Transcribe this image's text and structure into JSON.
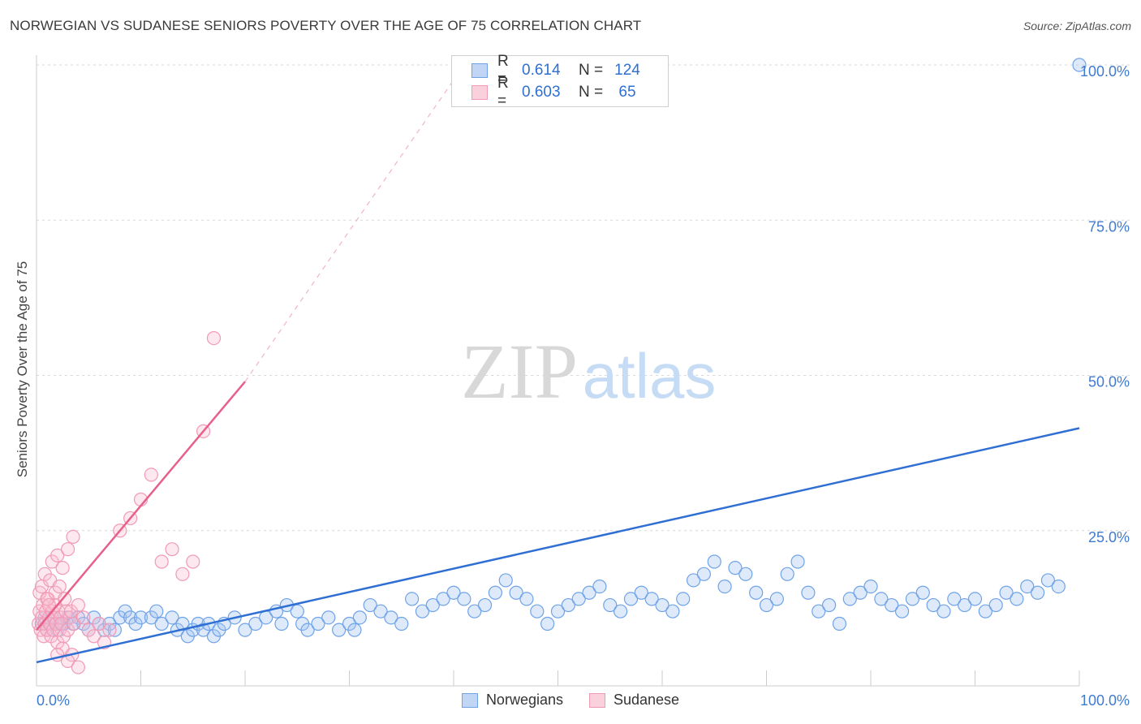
{
  "title": "NORWEGIAN VS SUDANESE SENIORS POVERTY OVER THE AGE OF 75 CORRELATION CHART",
  "source": "Source: ZipAtlas.com",
  "watermark": {
    "zip": "ZIP",
    "atlas": "atlas"
  },
  "legend_stats": [
    {
      "r_label": "R =",
      "r_value": "0.614",
      "n_label": "N =",
      "n_value": "124"
    },
    {
      "r_label": "R =",
      "r_value": "0.603",
      "n_label": "N =",
      "n_value": "65"
    }
  ],
  "colors": {
    "norwegians": "#6fa3e8",
    "norwegians_line": "#2f6fd3",
    "sudanese": "#f19ab5",
    "sudanese_line": "#e8608a",
    "tick_text": "#3f7bd0"
  },
  "chart_data": {
    "type": "scatter",
    "title": "NORWEGIAN VS SUDANESE SENIORS POVERTY OVER THE AGE OF 75 CORRELATION CHART",
    "xlabel": "",
    "ylabel": "Seniors Poverty Over the Age of 75",
    "xlim": [
      0,
      100
    ],
    "ylim": [
      0,
      100
    ],
    "x_tick_labels": [
      "0.0%",
      "100.0%"
    ],
    "y_tick_labels": [
      "25.0%",
      "50.0%",
      "75.0%",
      "100.0%"
    ],
    "y_ticks": [
      25,
      50,
      75,
      100
    ],
    "grid": true,
    "legend_position": "bottom-center",
    "series": [
      {
        "name": "Norwegians",
        "r": 0.614,
        "n": 124,
        "trend": {
          "x": [
            0,
            100
          ],
          "y": [
            3.8,
            41.5
          ],
          "dashed_extension": false
        },
        "points": [
          [
            0.5,
            10
          ],
          [
            0.8,
            11
          ],
          [
            1.0,
            9
          ],
          [
            1.2,
            10
          ],
          [
            1.5,
            11
          ],
          [
            1.8,
            10
          ],
          [
            2,
            9
          ],
          [
            2.3,
            10
          ],
          [
            2.6,
            10
          ],
          [
            3,
            11
          ],
          [
            3.5,
            10
          ],
          [
            4,
            11
          ],
          [
            4.5,
            10
          ],
          [
            5,
            9
          ],
          [
            5.5,
            11
          ],
          [
            6,
            10
          ],
          [
            6.5,
            9
          ],
          [
            7,
            10
          ],
          [
            7.5,
            9
          ],
          [
            8,
            11
          ],
          [
            8.5,
            12
          ],
          [
            9,
            11
          ],
          [
            9.5,
            10
          ],
          [
            10,
            11
          ],
          [
            11,
            11
          ],
          [
            11.5,
            12
          ],
          [
            12,
            10
          ],
          [
            13,
            11
          ],
          [
            13.5,
            9
          ],
          [
            14,
            10
          ],
          [
            14.5,
            8
          ],
          [
            15,
            9
          ],
          [
            15.5,
            10
          ],
          [
            16,
            9
          ],
          [
            16.5,
            10
          ],
          [
            17,
            8
          ],
          [
            17.5,
            9
          ],
          [
            18,
            10
          ],
          [
            19,
            11
          ],
          [
            20,
            9
          ],
          [
            21,
            10
          ],
          [
            22,
            11
          ],
          [
            23,
            12
          ],
          [
            23.5,
            10
          ],
          [
            24,
            13
          ],
          [
            25,
            12
          ],
          [
            25.5,
            10
          ],
          [
            26,
            9
          ],
          [
            27,
            10
          ],
          [
            28,
            11
          ],
          [
            29,
            9
          ],
          [
            30,
            10
          ],
          [
            30.5,
            9
          ],
          [
            31,
            11
          ],
          [
            32,
            13
          ],
          [
            33,
            12
          ],
          [
            34,
            11
          ],
          [
            35,
            10
          ],
          [
            36,
            14
          ],
          [
            37,
            12
          ],
          [
            38,
            13
          ],
          [
            39,
            14
          ],
          [
            40,
            15
          ],
          [
            41,
            14
          ],
          [
            42,
            12
          ],
          [
            43,
            13
          ],
          [
            44,
            15
          ],
          [
            45,
            17
          ],
          [
            46,
            15
          ],
          [
            47,
            14
          ],
          [
            48,
            12
          ],
          [
            49,
            10
          ],
          [
            50,
            12
          ],
          [
            51,
            13
          ],
          [
            52,
            14
          ],
          [
            53,
            15
          ],
          [
            54,
            16
          ],
          [
            55,
            13
          ],
          [
            56,
            12
          ],
          [
            57,
            14
          ],
          [
            58,
            15
          ],
          [
            59,
            14
          ],
          [
            60,
            13
          ],
          [
            61,
            12
          ],
          [
            62,
            14
          ],
          [
            63,
            17
          ],
          [
            64,
            18
          ],
          [
            65,
            20
          ],
          [
            66,
            16
          ],
          [
            67,
            19
          ],
          [
            68,
            18
          ],
          [
            69,
            15
          ],
          [
            70,
            13
          ],
          [
            71,
            14
          ],
          [
            72,
            18
          ],
          [
            73,
            20
          ],
          [
            74,
            15
          ],
          [
            75,
            12
          ],
          [
            76,
            13
          ],
          [
            77,
            10
          ],
          [
            78,
            14
          ],
          [
            79,
            15
          ],
          [
            80,
            16
          ],
          [
            81,
            14
          ],
          [
            82,
            13
          ],
          [
            83,
            12
          ],
          [
            84,
            14
          ],
          [
            85,
            15
          ],
          [
            86,
            13
          ],
          [
            87,
            12
          ],
          [
            88,
            14
          ],
          [
            89,
            13
          ],
          [
            90,
            14
          ],
          [
            91,
            12
          ],
          [
            92,
            13
          ],
          [
            93,
            15
          ],
          [
            94,
            14
          ],
          [
            95,
            16
          ],
          [
            96,
            15
          ],
          [
            97,
            17
          ],
          [
            98,
            16
          ],
          [
            100,
            100
          ]
        ]
      },
      {
        "name": "Sudanese",
        "r": 0.603,
        "n": 65,
        "trend": {
          "x": [
            0,
            20
          ],
          "y": [
            9,
            49
          ],
          "dashed_to": [
            41,
            100
          ]
        },
        "points": [
          [
            0.2,
            10
          ],
          [
            0.3,
            12
          ],
          [
            0.4,
            9
          ],
          [
            0.5,
            11
          ],
          [
            0.6,
            13
          ],
          [
            0.7,
            8
          ],
          [
            0.8,
            10
          ],
          [
            0.9,
            12
          ],
          [
            1.0,
            9
          ],
          [
            1.1,
            14
          ],
          [
            1.2,
            11
          ],
          [
            1.3,
            10
          ],
          [
            1.4,
            8
          ],
          [
            1.5,
            12
          ],
          [
            1.6,
            9
          ],
          [
            1.7,
            11
          ],
          [
            1.8,
            13
          ],
          [
            1.9,
            10
          ],
          [
            2.0,
            7
          ],
          [
            2.1,
            12
          ],
          [
            2.2,
            9
          ],
          [
            2.3,
            11
          ],
          [
            2.4,
            10
          ],
          [
            2.5,
            6
          ],
          [
            2.6,
            8
          ],
          [
            2.8,
            12
          ],
          [
            3.0,
            9
          ],
          [
            3.2,
            11
          ],
          [
            3.4,
            5
          ],
          [
            3.6,
            10
          ],
          [
            0.3,
            15
          ],
          [
            0.5,
            16
          ],
          [
            0.8,
            18
          ],
          [
            1.0,
            14
          ],
          [
            1.3,
            17
          ],
          [
            1.5,
            20
          ],
          [
            2.0,
            21
          ],
          [
            2.5,
            19
          ],
          [
            3.0,
            22
          ],
          [
            3.5,
            24
          ],
          [
            1.2,
            13
          ],
          [
            1.8,
            15
          ],
          [
            2.2,
            16
          ],
          [
            2.7,
            14
          ],
          [
            3.3,
            12
          ],
          [
            4,
            13
          ],
          [
            4.5,
            11
          ],
          [
            5,
            9
          ],
          [
            5.5,
            8
          ],
          [
            6,
            10
          ],
          [
            6.5,
            7
          ],
          [
            7,
            9
          ],
          [
            8,
            25
          ],
          [
            9,
            27
          ],
          [
            10,
            30
          ],
          [
            11,
            34
          ],
          [
            12,
            20
          ],
          [
            13,
            22
          ],
          [
            14,
            18
          ],
          [
            15,
            20
          ],
          [
            16,
            41
          ],
          [
            17,
            56
          ],
          [
            2,
            5
          ],
          [
            3,
            4
          ],
          [
            4,
            3
          ]
        ]
      }
    ]
  },
  "x_axis": {
    "min_label": "0.0%",
    "max_label": "100.0%"
  },
  "bottom_legend": [
    {
      "label": "Norwegians"
    },
    {
      "label": "Sudanese"
    }
  ]
}
